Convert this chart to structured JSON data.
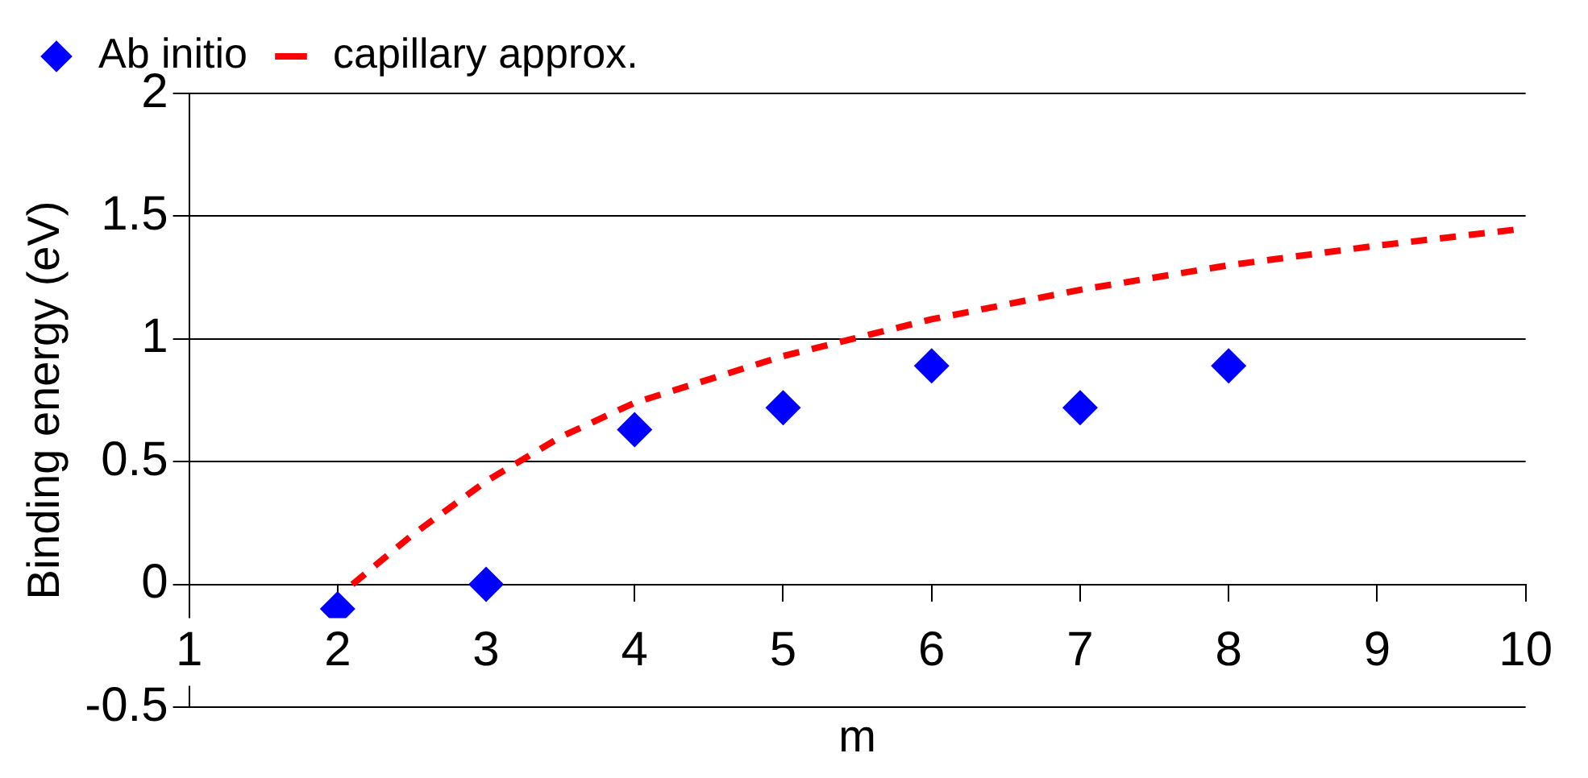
{
  "chart_data": {
    "type": "scatter",
    "xlabel": "m",
    "ylabel": "Binding energy (eV)",
    "xlim": [
      1,
      10
    ],
    "xticks": [
      1,
      2,
      3,
      4,
      5,
      6,
      7,
      8,
      9,
      10
    ],
    "ylim": [
      -0.5,
      2
    ],
    "yticks": [
      -0.5,
      0,
      0.5,
      1,
      1.5,
      2
    ],
    "grid": "y",
    "legend": "top left",
    "series": [
      {
        "name": "Ab initio",
        "type": "scatter",
        "marker": "diamond",
        "color": "#0000ff",
        "x": [
          2,
          3,
          4,
          5,
          6,
          7,
          8
        ],
        "values": [
          -0.1,
          0,
          0.63,
          0.72,
          0.89,
          0.72,
          0.89
        ]
      },
      {
        "name": "capillary approx.",
        "type": "line",
        "marker": "none",
        "line_style": "dashed",
        "color": "#ff0000",
        "x": [
          2.1,
          2.5,
          3,
          3.5,
          4,
          5,
          6,
          7,
          8,
          9,
          10
        ],
        "values": [
          0,
          0.2,
          0.42,
          0.6,
          0.74,
          0.93,
          1.08,
          1.2,
          1.3,
          1.38,
          1.45
        ]
      }
    ]
  }
}
